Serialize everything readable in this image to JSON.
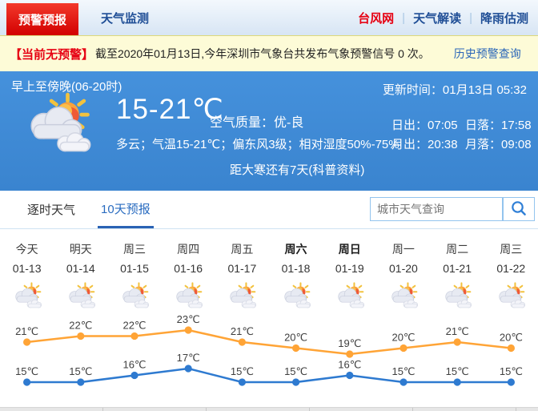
{
  "nav": {
    "alert_tab": "预警预报",
    "monitor_tab": "天气监测",
    "links": [
      {
        "label": "台风网",
        "accent": true
      },
      {
        "label": "天气解读",
        "accent": false
      },
      {
        "label": "降雨估测",
        "accent": false
      }
    ]
  },
  "alert_bar": {
    "badge": "【当前无预警】",
    "message": "截至2020年01月13日,今年深圳市气象台共发布气象预警信号 0 次。",
    "history_link": "历史预警查询"
  },
  "hero": {
    "period": "早上至傍晚(06-20时)",
    "update_label": "更新时间：",
    "update_time": "01月13日 05:32",
    "temp_range": "15-21℃",
    "air_quality_label": "空气质量：",
    "air_quality_value": "优-良",
    "description": "多云；气温15-21℃；偏东风3级；相对湿度50%-75%",
    "sunrise_label": "日出：",
    "sunrise_time": "07:05",
    "sunset_label": "日落：",
    "sunset_time": "17:58",
    "moonrise_label": "月出：",
    "moonrise_time": "20:38",
    "moonset_label": "月落：",
    "moonset_time": "09:08",
    "solar_term_note": "距大寒还有7天(科普资料)"
  },
  "tabs": {
    "hourly": "逐时天气",
    "ten_day": "10天预报",
    "active": "10天预报"
  },
  "search": {
    "placeholder": "城市天气查询"
  },
  "forecast": {
    "days": [
      {
        "name": "今天",
        "date": "01-13",
        "icon": "partly-cloudy",
        "weekend": false
      },
      {
        "name": "明天",
        "date": "01-14",
        "icon": "partly-cloudy",
        "weekend": false
      },
      {
        "name": "周三",
        "date": "01-15",
        "icon": "partly-cloudy",
        "weekend": false
      },
      {
        "name": "周四",
        "date": "01-16",
        "icon": "partly-cloudy",
        "weekend": false
      },
      {
        "name": "周五",
        "date": "01-17",
        "icon": "partly-cloudy",
        "weekend": false
      },
      {
        "name": "周六",
        "date": "01-18",
        "icon": "partly-cloudy",
        "weekend": true
      },
      {
        "name": "周日",
        "date": "01-19",
        "icon": "partly-cloudy",
        "weekend": true
      },
      {
        "name": "周一",
        "date": "01-20",
        "icon": "partly-cloudy",
        "weekend": false
      },
      {
        "name": "周二",
        "date": "01-21",
        "icon": "partly-cloudy",
        "weekend": false
      },
      {
        "name": "周三",
        "date": "01-22",
        "icon": "partly-cloudy",
        "weekend": false
      }
    ]
  },
  "chart_data": {
    "type": "line",
    "categories": [
      "01-13",
      "01-14",
      "01-15",
      "01-16",
      "01-17",
      "01-18",
      "01-19",
      "01-20",
      "01-21",
      "01-22"
    ],
    "series": [
      {
        "name": "最高气温",
        "color": "#ffa436",
        "unit": "℃",
        "values": [
          21,
          22,
          22,
          23,
          21,
          20,
          19,
          20,
          21,
          20
        ]
      },
      {
        "name": "最低气温",
        "color": "#2e7ad0",
        "unit": "℃",
        "values": [
          15,
          15,
          16,
          17,
          15,
          15,
          16,
          15,
          15,
          15
        ]
      }
    ],
    "label_suffix": "℃",
    "grid": false,
    "legend": "none"
  },
  "colors": {
    "accent_red": "#e60012",
    "link_blue": "#1f4e96",
    "hero_blue": "#3f8ad5",
    "high_line": "#ffa436",
    "low_line": "#2e7ad0"
  }
}
